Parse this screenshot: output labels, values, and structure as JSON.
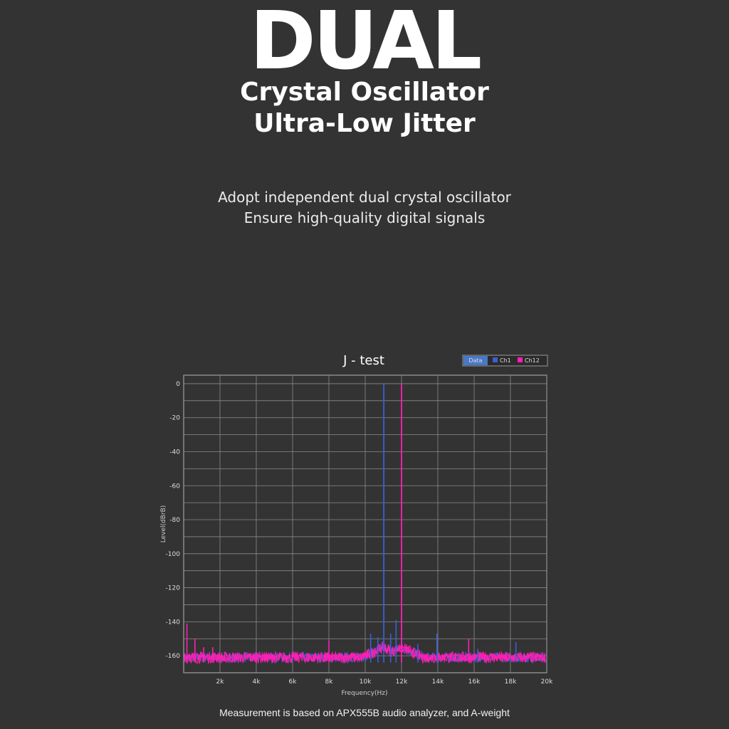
{
  "header": {
    "title": "DUAL",
    "subtitle_line1": "Crystal Oscillator",
    "subtitle_line2": "Ultra-Low Jitter"
  },
  "description": {
    "line1": "Adopt independent dual crystal oscillator",
    "line2": "Ensure high-quality digital signals"
  },
  "footnote": "Measurement is based on APX555B audio analyzer, and A-weight",
  "colors": {
    "background": "#333333",
    "grid": "#8a8a8a",
    "series_ch1": "#3a5fd6",
    "series_ch12": "#ff1fb4",
    "legend_data_bg": "#4a78c8"
  },
  "chart_data": {
    "type": "line",
    "title": "J - test",
    "xlabel": "Frequency(Hz)",
    "ylabel": "Level(dBrB)",
    "xlim": [
      0,
      20000
    ],
    "ylim": [
      -170,
      5
    ],
    "x_ticks": [
      2000,
      4000,
      6000,
      8000,
      10000,
      12000,
      14000,
      16000,
      18000,
      20000
    ],
    "x_tick_labels": [
      "2k",
      "4k",
      "6k",
      "8k",
      "10k",
      "12k",
      "14k",
      "16k",
      "18k",
      "20k"
    ],
    "y_ticks": [
      0,
      -20,
      -40,
      -60,
      -80,
      -100,
      -120,
      -140,
      -160
    ],
    "y_tick_labels": [
      "0",
      "-20",
      "-40",
      "-60",
      "-80",
      "-100",
      "-120",
      "-140",
      "-160"
    ],
    "grid": true,
    "legend": {
      "placement": "top-right",
      "header": "Data",
      "entries": [
        "Ch1",
        "Ch12"
      ]
    },
    "noise_floor_db": -161,
    "series": [
      {
        "name": "Ch1",
        "color": "#3a5fd6",
        "peaks": [
          {
            "x": 11025,
            "y": 0
          },
          {
            "x": 10300,
            "y": -147
          },
          {
            "x": 10700,
            "y": -149
          },
          {
            "x": 11400,
            "y": -147
          },
          {
            "x": 11700,
            "y": -139
          },
          {
            "x": 12900,
            "y": -153
          },
          {
            "x": 13950,
            "y": -147
          },
          {
            "x": 18300,
            "y": -152
          },
          {
            "x": 16200,
            "y": -156
          }
        ]
      },
      {
        "name": "Ch12",
        "color": "#ff1fb4",
        "peaks": [
          {
            "x": 12000,
            "y": 0
          },
          {
            "x": 180,
            "y": -141
          },
          {
            "x": 620,
            "y": -150
          },
          {
            "x": 1100,
            "y": -155
          },
          {
            "x": 1600,
            "y": -155
          },
          {
            "x": 8000,
            "y": -151
          },
          {
            "x": 15700,
            "y": -150
          },
          {
            "x": 4000,
            "y": -158
          }
        ]
      }
    ]
  }
}
